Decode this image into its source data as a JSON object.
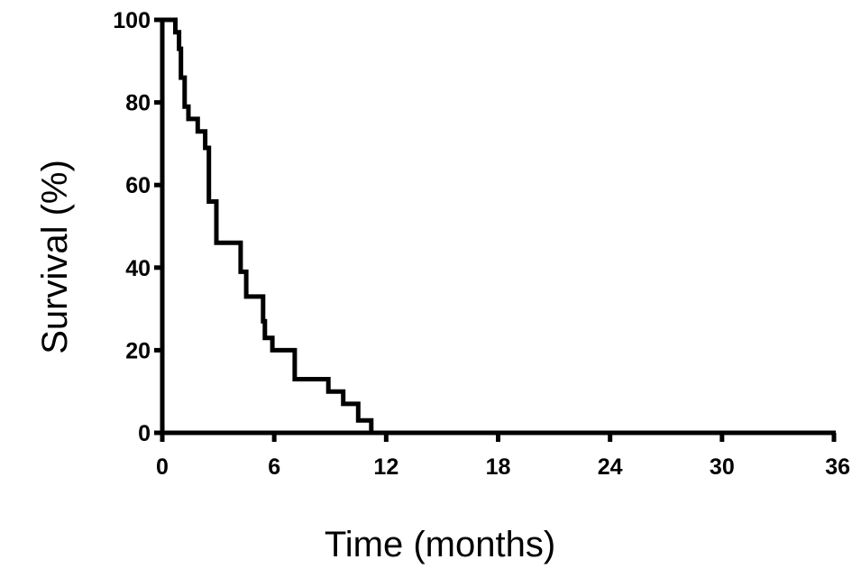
{
  "chart_data": {
    "type": "line",
    "xlabel": "Time (months)",
    "ylabel": "Survival (%)",
    "xlim": [
      0,
      36
    ],
    "ylim": [
      0,
      100
    ],
    "x_ticks": [
      "0",
      "6",
      "12",
      "18",
      "24",
      "30",
      "36"
    ],
    "y_ticks": [
      "0",
      "20",
      "40",
      "60",
      "80",
      "100"
    ],
    "grid": false,
    "series": [
      {
        "line_color": "#000000",
        "step": true,
        "points": [
          [
            0,
            100
          ],
          [
            0.7,
            100
          ],
          [
            0.7,
            97
          ],
          [
            0.9,
            97
          ],
          [
            0.9,
            93
          ],
          [
            1.0,
            93
          ],
          [
            1.0,
            86
          ],
          [
            1.2,
            86
          ],
          [
            1.2,
            79
          ],
          [
            1.4,
            79
          ],
          [
            1.4,
            76
          ],
          [
            1.9,
            76
          ],
          [
            1.9,
            73
          ],
          [
            2.3,
            73
          ],
          [
            2.3,
            69
          ],
          [
            2.5,
            69
          ],
          [
            2.5,
            56
          ],
          [
            2.9,
            56
          ],
          [
            2.9,
            46
          ],
          [
            4.2,
            46
          ],
          [
            4.2,
            39
          ],
          [
            4.5,
            39
          ],
          [
            4.5,
            33
          ],
          [
            5.4,
            33
          ],
          [
            5.4,
            27
          ],
          [
            5.5,
            27
          ],
          [
            5.5,
            23
          ],
          [
            5.9,
            23
          ],
          [
            5.9,
            20
          ],
          [
            7.1,
            20
          ],
          [
            7.1,
            13
          ],
          [
            8.9,
            13
          ],
          [
            8.9,
            10
          ],
          [
            9.7,
            10
          ],
          [
            9.7,
            7
          ],
          [
            10.5,
            7
          ],
          [
            10.5,
            3
          ],
          [
            11.2,
            3
          ],
          [
            11.2,
            0
          ],
          [
            36,
            0
          ]
        ]
      }
    ]
  }
}
